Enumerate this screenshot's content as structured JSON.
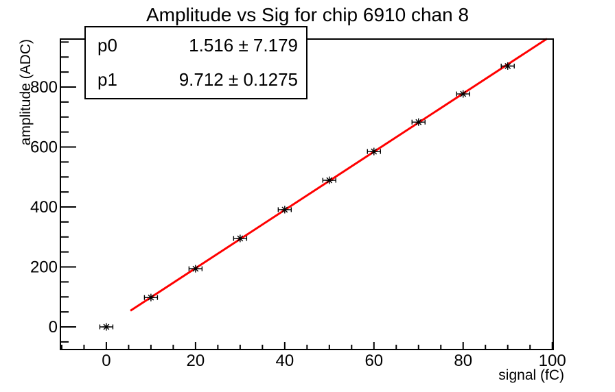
{
  "title": "Amplitude vs Sig for chip 6910 chan 8",
  "stats_box": {
    "rows": [
      {
        "name": "p0",
        "value": "1.516 ± 7.179"
      },
      {
        "name": "p1",
        "value": "9.712 ± 0.1275"
      }
    ]
  },
  "chart_data": {
    "type": "scatter",
    "title": "Amplitude vs Sig for chip 6910 chan 8",
    "xlabel": "signal (fC)",
    "ylabel": "amplitude (ADC)",
    "xlim": [
      -10.3,
      100.2
    ],
    "ylim": [
      -75.4,
      960
    ],
    "x_major_ticks": [
      0,
      20,
      40,
      60,
      80,
      100
    ],
    "x_minor_step": 5,
    "y_major_ticks": [
      0,
      200,
      400,
      600,
      800
    ],
    "y_minor_step": 50,
    "grid": false,
    "legend": "none",
    "series": [
      {
        "name": "measured-points",
        "type": "scatter",
        "marker": "asterisk",
        "color": "#000000",
        "x": [
          0,
          10,
          20,
          30,
          40,
          50,
          60,
          70,
          80,
          90
        ],
        "y": [
          0,
          98,
          194,
          295,
          391,
          489,
          585,
          683,
          777,
          870
        ],
        "xerr": 1.4
      },
      {
        "name": "linear-fit",
        "type": "line",
        "color": "#ff0000",
        "width": 3,
        "p0": 1.516,
        "p1": 9.712,
        "x_start": 5.4,
        "x_end": 98.8
      }
    ]
  },
  "colors": {
    "background": "#ffffff",
    "axes": "#000000",
    "markers": "#000000",
    "fit_line": "#ff0000"
  }
}
